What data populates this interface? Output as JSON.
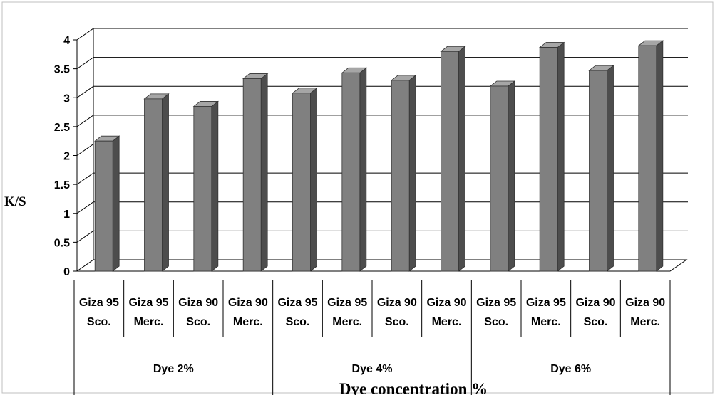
{
  "chart_data": {
    "type": "bar",
    "title": "",
    "xlabel": "Dye concentration %",
    "ylabel": "K/S",
    "ylim": [
      0,
      4
    ],
    "yticks": [
      "0",
      "0.5",
      "1",
      "1.5",
      "2",
      "2.5",
      "3",
      "3.5",
      "4"
    ],
    "grid": true,
    "legend": "none",
    "bar_color": "#808080",
    "groups": [
      {
        "label": "Dye 2%",
        "categories": [
          {
            "line1": "Giza 95",
            "line2": "Sco.",
            "value": 2.25
          },
          {
            "line1": "Giza 95",
            "line2": "Merc.",
            "value": 2.98
          },
          {
            "line1": "Giza 90",
            "line2": "Sco.",
            "value": 2.85
          },
          {
            "line1": "Giza 90",
            "line2": "Merc.",
            "value": 3.33
          }
        ]
      },
      {
        "label": "Dye 4%",
        "categories": [
          {
            "line1": "Giza 95",
            "line2": "Sco.",
            "value": 3.08
          },
          {
            "line1": "Giza 95",
            "line2": "Merc.",
            "value": 3.43
          },
          {
            "line1": "Giza 90",
            "line2": "Sco.",
            "value": 3.3
          },
          {
            "line1": "Giza 90",
            "line2": "Merc.",
            "value": 3.8
          }
        ]
      },
      {
        "label": "Dye 6%",
        "categories": [
          {
            "line1": "Giza 95",
            "line2": "Sco.",
            "value": 3.2
          },
          {
            "line1": "Giza 95",
            "line2": "Merc.",
            "value": 3.87
          },
          {
            "line1": "Giza 90",
            "line2": "Sco.",
            "value": 3.47
          },
          {
            "line1": "Giza 90",
            "line2": "Merc.",
            "value": 3.9
          }
        ]
      }
    ]
  }
}
